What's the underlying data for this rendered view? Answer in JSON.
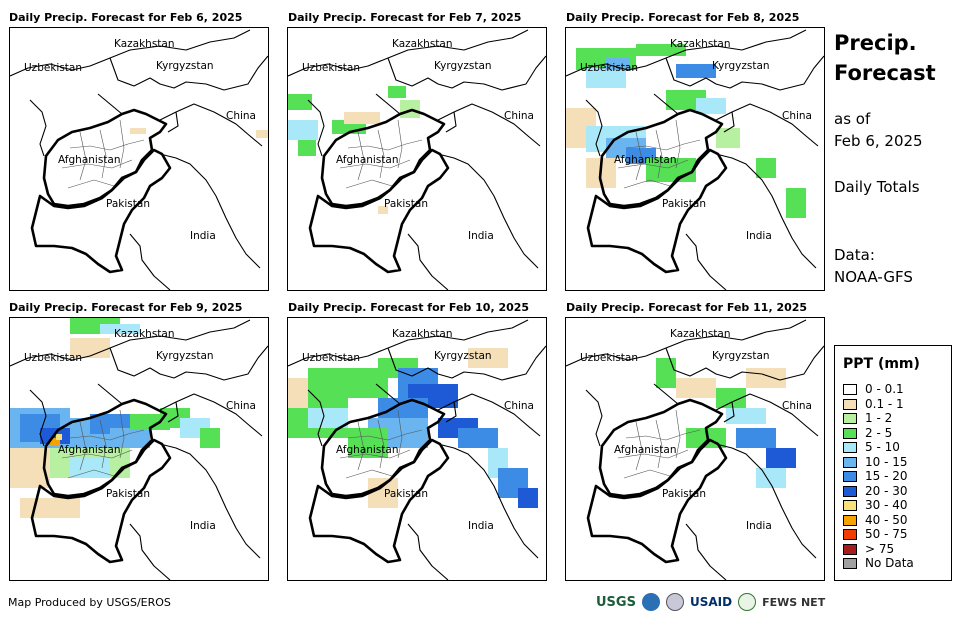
{
  "panels": [
    {
      "title": "Daily Precip. Forecast for Feb 6, 2025"
    },
    {
      "title": "Daily Precip. Forecast for Feb 7, 2025"
    },
    {
      "title": "Daily Precip. Forecast for Feb 8, 2025"
    },
    {
      "title": "Daily Precip. Forecast for Feb 9, 2025"
    },
    {
      "title": "Daily Precip. Forecast for Feb 10, 2025"
    },
    {
      "title": "Daily Precip. Forecast for Feb 11, 2025"
    }
  ],
  "map_labels": {
    "kazakhstan": "Kazakhstan",
    "uzbekistan": "Uzbekistan",
    "kyrgyzstan": "Kyrgyzstan",
    "china": "China",
    "afghanistan": "Afghanistan",
    "pakistan": "Pakistan",
    "india": "India"
  },
  "sidebar": {
    "title_line1": "Precip.",
    "title_line2": "Forecast",
    "asof_line1": "as of",
    "asof_line2": "Feb 6, 2025",
    "totals": "Daily Totals",
    "data_line1": "Data:",
    "data_line2": "NOAA-GFS"
  },
  "legend": {
    "title": "PPT (mm)",
    "items": [
      {
        "label": "0 - 0.1",
        "color": "#ffffff"
      },
      {
        "label": "0.1 - 1",
        "color": "#f5dfb8"
      },
      {
        "label": "1 - 2",
        "color": "#b6f0a0"
      },
      {
        "label": "2 - 5",
        "color": "#55e055"
      },
      {
        "label": "5 - 10",
        "color": "#a9e8f8"
      },
      {
        "label": "10 - 15",
        "color": "#6ab4f0"
      },
      {
        "label": "15 - 20",
        "color": "#3c8ce6"
      },
      {
        "label": "20 - 30",
        "color": "#1e5ad6"
      },
      {
        "label": "30 - 40",
        "color": "#f8e07a"
      },
      {
        "label": "40 - 50",
        "color": "#f5a300"
      },
      {
        "label": "50 - 75",
        "color": "#f03c00"
      },
      {
        "label": "> 75",
        "color": "#a51c1c"
      },
      {
        "label": "No Data",
        "color": "#a0a0a0"
      }
    ]
  },
  "footer": {
    "credit": "Map Produced by USGS/EROS"
  },
  "logos": {
    "usgs": "USGS",
    "usaid": "USAID",
    "fewsnet": "FEWS NET"
  }
}
